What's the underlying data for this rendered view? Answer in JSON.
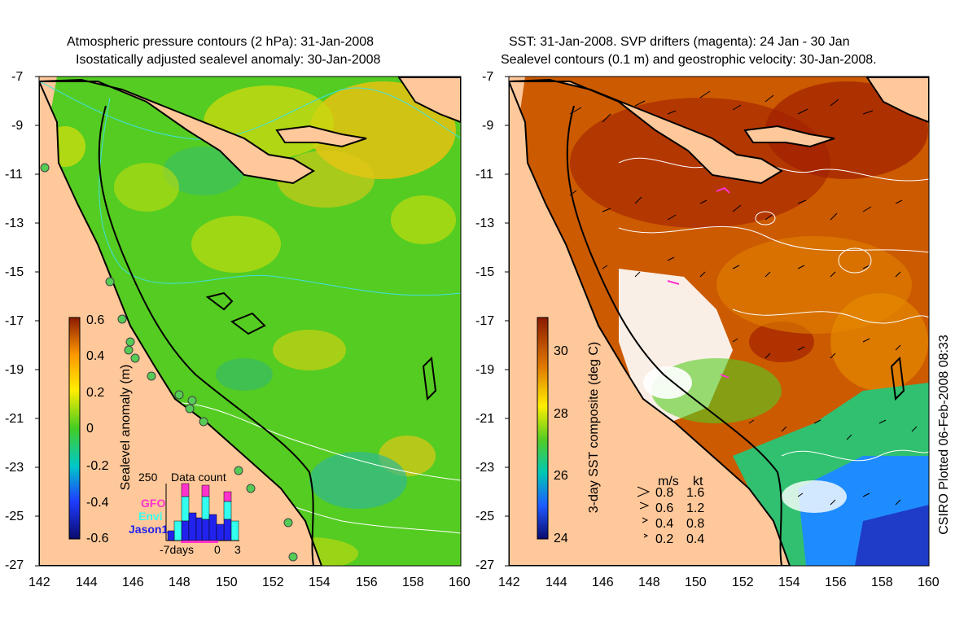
{
  "left_panel": {
    "title_line1": "Atmospheric pressure contours (2 hPa): 31-Jan-2008",
    "title_line2": "Isostatically adjusted sealevel anomaly: 30-Jan-2008",
    "colorbar_label": "Sealevel anomaly (m)",
    "colorbar_ticks": [
      "0.6",
      "0.4",
      "0.2",
      "0",
      "-0.2",
      "-0.4",
      "-0.6"
    ],
    "inset": {
      "title": "Data count",
      "max_label": "250",
      "legend": [
        {
          "name": "GFO",
          "color": "#ff33cc"
        },
        {
          "name": "Envi",
          "color": "#33ffee"
        },
        {
          "name": "Jason1",
          "color": "#2222ee"
        }
      ],
      "x_labels": [
        "-7days",
        "0",
        "3"
      ]
    }
  },
  "right_panel": {
    "title_line1": "SST: 31-Jan-2008. SVP drifters (magenta): 24 Jan - 30 Jan",
    "title_line2": "Sealevel contours (0.1 m) and geostrophic velocity: 30-Jan-2008.",
    "colorbar_label": "3-day SST composite (deg C)",
    "colorbar_ticks": [
      "30",
      "28",
      "26",
      "24"
    ],
    "velocity_legend": {
      "header_ms": "m/s",
      "header_kt": "kt",
      "rows": [
        {
          "ms": "0.8",
          "kt": "1.6"
        },
        {
          "ms": "0.6",
          "kt": "1.2"
        },
        {
          "ms": "0.4",
          "kt": "0.8"
        },
        {
          "ms": "0.2",
          "kt": "0.4"
        }
      ]
    }
  },
  "y_ticks": [
    "-7",
    "-9",
    "-11",
    "-13",
    "-15",
    "-17",
    "-19",
    "-21",
    "-23",
    "-25",
    "-27"
  ],
  "x_ticks": [
    "142",
    "144",
    "146",
    "148",
    "150",
    "152",
    "154",
    "156",
    "158",
    "160"
  ],
  "credit": "CSIRO Plotted 06-Feb-2008 08:33",
  "colors": {
    "land": "#ffc89a",
    "sla_base": "#55cc22",
    "sst_base": "#cc5a00"
  }
}
